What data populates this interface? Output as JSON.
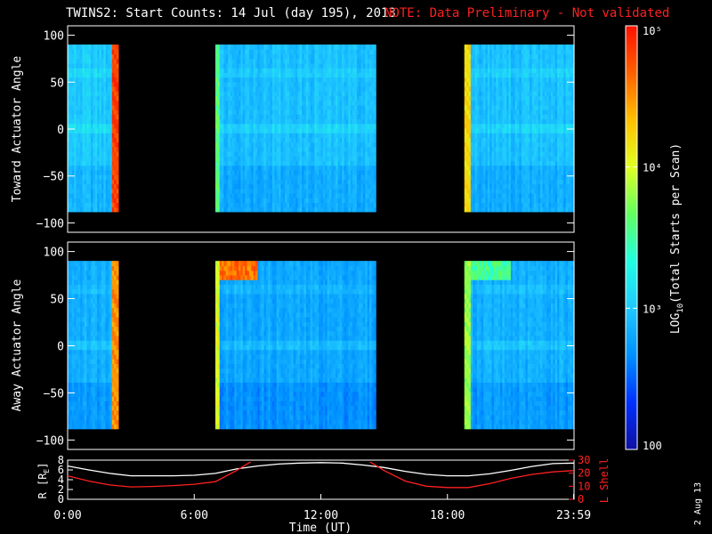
{
  "header": {
    "title": "TWINS2: Start Counts: 14 Jul (day 195), 2013",
    "note": "NOTE: Data Preliminary - Not validated"
  },
  "colors": {
    "background": "#000000",
    "axis": "#ffffff",
    "note": "#ff2020",
    "lshell_line": "#ff2020",
    "r_line": "#ffffff"
  },
  "colorbar": {
    "label": "LOG10(Total Starts per Scan)",
    "label_main": "LOG",
    "label_sub": "10",
    "label_tail": "(Total Starts per Scan)",
    "ticks": [
      "100",
      "10³",
      "10⁴",
      "10⁵"
    ],
    "range": [
      100,
      100000
    ],
    "scale": "log",
    "colormap": [
      "#1010a0",
      "#0030ff",
      "#0090ff",
      "#20c8ff",
      "#20ffe0",
      "#60ff60",
      "#e0ff20",
      "#ffc000",
      "#ff6000",
      "#ff1000"
    ]
  },
  "date_stamp": "2 Aug 13",
  "chart_data": [
    {
      "type": "heatmap",
      "name": "toward",
      "ylabel": "Toward Actuator Angle",
      "ylim": [
        -110,
        110
      ],
      "yticks": [
        "100",
        "50",
        "0",
        "−50",
        "−100"
      ],
      "xlim": [
        0,
        24
      ],
      "angle_range": [
        -88,
        90
      ],
      "data_blocks": [
        {
          "start": 0.0,
          "end": 2.4,
          "level": 3.0,
          "edge_level": 4.8,
          "edge_hour": 2.2
        },
        {
          "start": 7.0,
          "end": 14.6,
          "level": 2.95,
          "edge_level": 3.6,
          "edge_hour": 7.05
        },
        {
          "start": 18.8,
          "end": 24.0,
          "level": 2.95,
          "edge_level": 4.2,
          "edge_hour": 18.85
        }
      ]
    },
    {
      "type": "heatmap",
      "name": "away",
      "ylabel": "Away Actuator Angle",
      "ylim": [
        -110,
        110
      ],
      "yticks": [
        "100",
        "50",
        "0",
        "−50",
        "−100"
      ],
      "xlim": [
        0,
        24
      ],
      "angle_range": [
        -88,
        90
      ],
      "data_blocks": [
        {
          "start": 0.0,
          "end": 2.4,
          "level": 2.85,
          "edge_level": 4.5,
          "edge_hour": 2.2
        },
        {
          "start": 7.0,
          "end": 14.6,
          "level": 2.8,
          "edge_level": 4.0,
          "edge_hour": 7.05,
          "hot_band": {
            "start": 7.0,
            "end": 9.0,
            "angle_min": 70,
            "angle_max": 90,
            "level": 4.6
          }
        },
        {
          "start": 18.8,
          "end": 24.0,
          "level": 2.85,
          "edge_level": 3.8,
          "edge_hour": 18.85,
          "hot_band": {
            "start": 19.0,
            "end": 21.0,
            "angle_min": 70,
            "angle_max": 90,
            "level": 3.5
          }
        }
      ]
    },
    {
      "type": "line",
      "name": "orbit",
      "ylabel_left": "R [RE]",
      "ylabel_right": "L Shell",
      "left_ylim": [
        0,
        8
      ],
      "left_yticks": [
        "0",
        "2",
        "4",
        "6",
        "8"
      ],
      "right_ylim": [
        0,
        30
      ],
      "right_yticks": [
        "0",
        "10",
        "20",
        "30"
      ],
      "xlabel": "Time (UT)",
      "xticks": [
        "0:00",
        "6:00",
        "12:00",
        "18:00",
        "23:59"
      ],
      "xtick_hours": [
        0,
        6,
        12,
        18,
        23.98
      ],
      "series": [
        {
          "name": "R",
          "axis": "left",
          "x": [
            0,
            1,
            2,
            3,
            4,
            5,
            6,
            7,
            8,
            9,
            10,
            11,
            12,
            13,
            14,
            15,
            16,
            17,
            18,
            19,
            20,
            21,
            22,
            23,
            24
          ],
          "y": [
            6.8,
            6.0,
            5.3,
            4.8,
            4.8,
            4.8,
            4.9,
            5.3,
            6.2,
            6.8,
            7.2,
            7.4,
            7.5,
            7.4,
            7.0,
            6.5,
            5.7,
            5.1,
            4.8,
            4.8,
            5.2,
            5.9,
            6.7,
            7.3,
            7.4
          ]
        },
        {
          "name": "L Shell",
          "axis": "right",
          "x": [
            0,
            1,
            2,
            3,
            4,
            5,
            6,
            7,
            8,
            9,
            14,
            15,
            16,
            17,
            18,
            19,
            20,
            21,
            22,
            23,
            24
          ],
          "y": [
            18,
            14,
            11,
            9.5,
            9.8,
            10.5,
            11.5,
            13.5,
            22,
            32,
            32,
            22,
            14,
            10,
            9,
            9,
            12,
            16,
            19,
            21,
            22
          ]
        }
      ]
    }
  ]
}
